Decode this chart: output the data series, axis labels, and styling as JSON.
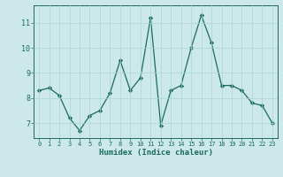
{
  "x": [
    0,
    1,
    2,
    3,
    4,
    5,
    6,
    7,
    8,
    9,
    10,
    11,
    12,
    13,
    14,
    15,
    16,
    17,
    18,
    19,
    20,
    21,
    22,
    23
  ],
  "y": [
    8.3,
    8.4,
    8.1,
    7.2,
    6.7,
    7.3,
    7.5,
    8.2,
    9.5,
    8.3,
    8.8,
    11.2,
    6.9,
    8.3,
    8.5,
    10.0,
    11.3,
    10.2,
    8.5,
    8.5,
    8.3,
    7.8,
    7.7,
    7.0
  ],
  "xlabel": "Humidex (Indice chaleur)",
  "line_color": "#1a6b5a",
  "bg_color": "#cce8e8",
  "grid_color": "#aad4d4",
  "ylim": [
    6.4,
    11.7
  ],
  "yticks": [
    7,
    8,
    9,
    10,
    11
  ],
  "xtick_labels": [
    "0",
    "1",
    "2",
    "3",
    "4",
    "5",
    "6",
    "7",
    "8",
    "9",
    "10",
    "11",
    "12",
    "13",
    "14",
    "15",
    "16",
    "17",
    "18",
    "19",
    "20",
    "21",
    "22",
    "23"
  ]
}
